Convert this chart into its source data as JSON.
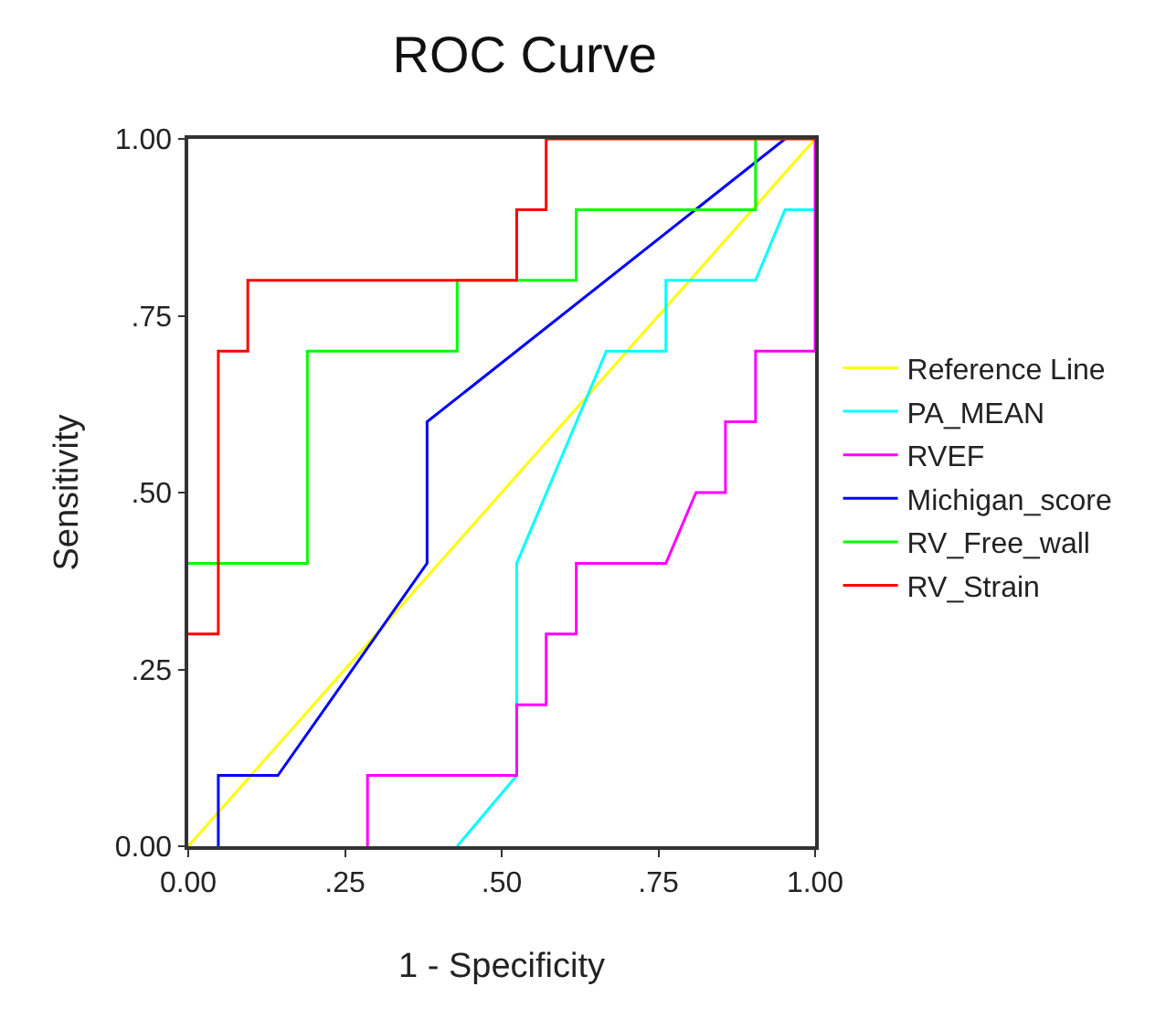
{
  "chart_data": {
    "type": "line",
    "title": "ROC Curve",
    "xlabel": "1 - Specificity",
    "ylabel": "Sensitivity",
    "xlim": [
      0,
      1
    ],
    "ylim": [
      0,
      1
    ],
    "xticks": [
      {
        "value": 0,
        "label": "0.00"
      },
      {
        "value": 0.25,
        "label": ".25"
      },
      {
        "value": 0.5,
        "label": ".50"
      },
      {
        "value": 0.75,
        "label": ".75"
      },
      {
        "value": 1,
        "label": "1.00"
      }
    ],
    "yticks": [
      {
        "value": 0,
        "label": "0.00"
      },
      {
        "value": 0.25,
        "label": ".25"
      },
      {
        "value": 0.5,
        "label": ".50"
      },
      {
        "value": 0.75,
        "label": ".75"
      },
      {
        "value": 1,
        "label": "1.00"
      }
    ],
    "legend": "right",
    "marker": "none",
    "line_style": "solid",
    "series": [
      {
        "name": "Reference Line",
        "color": "#ffff00",
        "x": [
          0,
          1
        ],
        "values": [
          0,
          1
        ]
      },
      {
        "name": "PA_MEAN",
        "color": "#00ffff",
        "x": [
          0.429,
          0.524,
          0.524,
          0.667,
          0.762,
          0.762,
          0.905,
          0.952,
          1
        ],
        "values": [
          0,
          0.1,
          0.4,
          0.7,
          0.7,
          0.8,
          0.8,
          0.9,
          0.9
        ]
      },
      {
        "name": "RVEF",
        "color": "#ff00ff",
        "x": [
          0.286,
          0.286,
          0.524,
          0.524,
          0.571,
          0.571,
          0.619,
          0.619,
          0.762,
          0.81,
          0.857,
          0.857,
          0.905,
          0.905,
          1,
          1
        ],
        "values": [
          0,
          0.1,
          0.1,
          0.2,
          0.2,
          0.3,
          0.3,
          0.4,
          0.4,
          0.5,
          0.5,
          0.6,
          0.6,
          0.7,
          0.7,
          1
        ]
      },
      {
        "name": "Michigan_score",
        "color": "#0000ff",
        "x": [
          0.048,
          0.048,
          0.143,
          0.381,
          0.381,
          0.952
        ],
        "values": [
          0,
          0.1,
          0.1,
          0.4,
          0.6,
          1
        ]
      },
      {
        "name": "RV_Free_wall",
        "color": "#00ff00",
        "x": [
          0,
          0.19,
          0.19,
          0.429,
          0.429,
          0.619,
          0.619,
          0.905,
          0.905
        ],
        "values": [
          0.4,
          0.4,
          0.7,
          0.7,
          0.8,
          0.8,
          0.9,
          0.9,
          1
        ]
      },
      {
        "name": "RV_Strain",
        "color": "#ff0000",
        "x": [
          0,
          0.048,
          0.048,
          0.095,
          0.095,
          0.524,
          0.524,
          0.571,
          0.571,
          1
        ],
        "values": [
          0.3,
          0.3,
          0.7,
          0.7,
          0.8,
          0.8,
          0.9,
          0.9,
          1,
          1
        ]
      }
    ]
  }
}
